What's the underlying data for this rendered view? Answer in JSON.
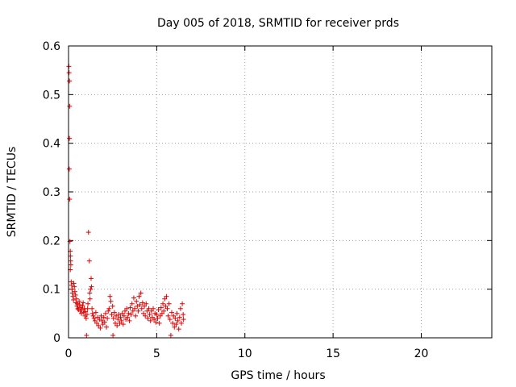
{
  "chart_data": {
    "type": "scatter",
    "title": "Day 005 of 2018, SRMTID for receiver prds",
    "xlabel": "GPS time / hours",
    "ylabel": "SRMTID / TECUs",
    "xlim": [
      0,
      24
    ],
    "ylim": [
      0,
      0.6
    ],
    "x_ticks": [
      "0",
      "5",
      "10",
      "15",
      "20"
    ],
    "y_ticks": [
      "0",
      "0.1",
      "0.2",
      "0.3",
      "0.4",
      "0.5",
      "0.6"
    ],
    "grid": true,
    "marker": "+",
    "series_color": "#e00000",
    "points": [
      [
        0.02,
        0.558
      ],
      [
        0.03,
        0.545
      ],
      [
        0.05,
        0.528
      ],
      [
        0.06,
        0.476
      ],
      [
        0.05,
        0.41
      ],
      [
        0.04,
        0.347
      ],
      [
        0.06,
        0.285
      ],
      [
        0.08,
        0.198
      ],
      [
        0.1,
        0.178
      ],
      [
        0.11,
        0.168
      ],
      [
        0.12,
        0.158
      ],
      [
        0.13,
        0.15
      ],
      [
        0.1,
        0.14
      ],
      [
        0.15,
        0.115
      ],
      [
        0.18,
        0.108
      ],
      [
        0.2,
        0.1
      ],
      [
        0.22,
        0.092
      ],
      [
        0.25,
        0.085
      ],
      [
        0.28,
        0.078
      ],
      [
        0.3,
        0.112
      ],
      [
        0.33,
        0.105
      ],
      [
        0.36,
        0.095
      ],
      [
        0.4,
        0.088
      ],
      [
        0.42,
        0.072
      ],
      [
        0.45,
        0.08
      ],
      [
        0.48,
        0.065
      ],
      [
        0.5,
        0.07
      ],
      [
        0.53,
        0.06
      ],
      [
        0.56,
        0.058
      ],
      [
        0.6,
        0.075
      ],
      [
        0.63,
        0.068
      ],
      [
        0.66,
        0.055
      ],
      [
        0.7,
        0.062
      ],
      [
        0.73,
        0.05
      ],
      [
        0.76,
        0.058
      ],
      [
        0.8,
        0.066
      ],
      [
        0.83,
        0.072
      ],
      [
        0.86,
        0.052
      ],
      [
        0.9,
        0.06
      ],
      [
        0.93,
        0.045
      ],
      [
        0.96,
        0.054
      ],
      [
        1.0,
        0.04
      ],
      [
        1.02,
        0.005
      ],
      [
        1.05,
        0.048
      ],
      [
        1.08,
        0.06
      ],
      [
        1.1,
        0.07
      ],
      [
        1.13,
        0.217
      ],
      [
        1.18,
        0.158
      ],
      [
        1.2,
        0.092
      ],
      [
        1.22,
        0.08
      ],
      [
        1.25,
        0.1
      ],
      [
        1.28,
        0.122
      ],
      [
        1.3,
        0.105
      ],
      [
        1.33,
        0.06
      ],
      [
        1.36,
        0.05
      ],
      [
        1.4,
        0.045
      ],
      [
        1.45,
        0.04
      ],
      [
        1.5,
        0.035
      ],
      [
        1.55,
        0.052
      ],
      [
        1.6,
        0.03
      ],
      [
        1.65,
        0.042
      ],
      [
        1.7,
        0.025
      ],
      [
        1.75,
        0.038
      ],
      [
        1.8,
        0.02
      ],
      [
        1.85,
        0.045
      ],
      [
        1.9,
        0.035
      ],
      [
        1.95,
        0.028
      ],
      [
        2.0,
        0.042
      ],
      [
        2.05,
        0.032
      ],
      [
        2.1,
        0.05
      ],
      [
        2.15,
        0.022
      ],
      [
        2.2,
        0.04
      ],
      [
        2.25,
        0.055
      ],
      [
        2.3,
        0.06
      ],
      [
        2.35,
        0.085
      ],
      [
        2.4,
        0.075
      ],
      [
        2.45,
        0.048
      ],
      [
        2.5,
        0.065
      ],
      [
        2.52,
        0.005
      ],
      [
        2.55,
        0.04
      ],
      [
        2.6,
        0.052
      ],
      [
        2.65,
        0.03
      ],
      [
        2.7,
        0.045
      ],
      [
        2.75,
        0.025
      ],
      [
        2.8,
        0.038
      ],
      [
        2.85,
        0.048
      ],
      [
        2.9,
        0.03
      ],
      [
        2.95,
        0.042
      ],
      [
        3.0,
        0.035
      ],
      [
        3.05,
        0.05
      ],
      [
        3.1,
        0.028
      ],
      [
        3.15,
        0.045
      ],
      [
        3.2,
        0.055
      ],
      [
        3.25,
        0.038
      ],
      [
        3.3,
        0.06
      ],
      [
        3.35,
        0.042
      ],
      [
        3.4,
        0.05
      ],
      [
        3.45,
        0.035
      ],
      [
        3.5,
        0.062
      ],
      [
        3.55,
        0.048
      ],
      [
        3.6,
        0.07
      ],
      [
        3.65,
        0.055
      ],
      [
        3.7,
        0.082
      ],
      [
        3.75,
        0.06
      ],
      [
        3.8,
        0.045
      ],
      [
        3.85,
        0.075
      ],
      [
        3.9,
        0.065
      ],
      [
        3.95,
        0.055
      ],
      [
        4.0,
        0.085
      ],
      [
        4.05,
        0.068
      ],
      [
        4.1,
        0.092
      ],
      [
        4.15,
        0.06
      ],
      [
        4.2,
        0.072
      ],
      [
        4.25,
        0.05
      ],
      [
        4.3,
        0.065
      ],
      [
        4.35,
        0.045
      ],
      [
        4.4,
        0.07
      ],
      [
        4.45,
        0.055
      ],
      [
        4.5,
        0.04
      ],
      [
        4.55,
        0.06
      ],
      [
        4.6,
        0.048
      ],
      [
        4.65,
        0.035
      ],
      [
        4.7,
        0.055
      ],
      [
        4.75,
        0.042
      ],
      [
        4.8,
        0.06
      ],
      [
        4.85,
        0.038
      ],
      [
        4.9,
        0.05
      ],
      [
        4.95,
        0.032
      ],
      [
        5.0,
        0.048
      ],
      [
        5.05,
        0.04
      ],
      [
        5.1,
        0.058
      ],
      [
        5.15,
        0.03
      ],
      [
        5.2,
        0.045
      ],
      [
        5.25,
        0.062
      ],
      [
        5.3,
        0.05
      ],
      [
        5.35,
        0.07
      ],
      [
        5.4,
        0.055
      ],
      [
        5.45,
        0.08
      ],
      [
        5.5,
        0.065
      ],
      [
        5.55,
        0.085
      ],
      [
        5.6,
        0.06
      ],
      [
        5.65,
        0.045
      ],
      [
        5.7,
        0.07
      ],
      [
        5.75,
        0.038
      ],
      [
        5.8,
        0.005
      ],
      [
        5.85,
        0.052
      ],
      [
        5.9,
        0.03
      ],
      [
        5.95,
        0.045
      ],
      [
        6.0,
        0.022
      ],
      [
        6.05,
        0.04
      ],
      [
        6.1,
        0.028
      ],
      [
        6.15,
        0.05
      ],
      [
        6.2,
        0.035
      ],
      [
        6.25,
        0.018
      ],
      [
        6.3,
        0.042
      ],
      [
        6.35,
        0.06
      ],
      [
        6.4,
        0.03
      ],
      [
        6.45,
        0.07
      ],
      [
        6.5,
        0.048
      ],
      [
        6.52,
        0.038
      ]
    ]
  }
}
